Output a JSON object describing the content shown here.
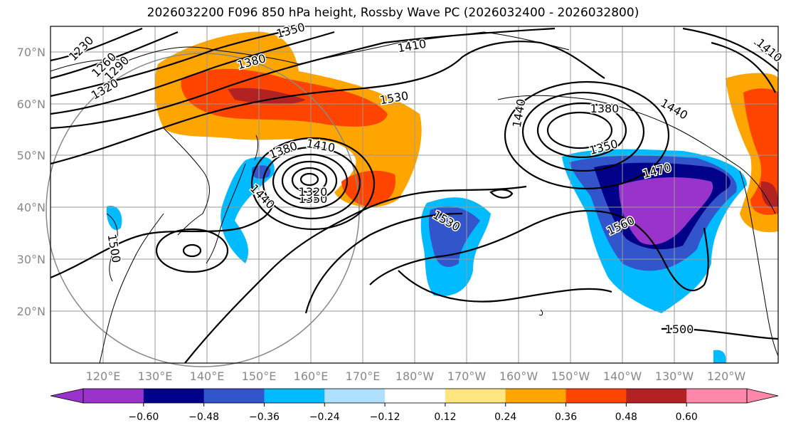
{
  "title": "2026032200 F096 850 hPa height, Rossby Wave PC (2026032400 - 2026032800)",
  "lat_labels": [
    "70°N",
    "60°N",
    "50°N",
    "40°N",
    "30°N",
    "20°N"
  ],
  "lon_labels": [
    "120°E",
    "130°E",
    "140°E",
    "150°E",
    "160°E",
    "170°E",
    "180°W",
    "170°W",
    "160°W",
    "150°W",
    "140°W",
    "130°W",
    "120°W"
  ],
  "contour_labels": [
    "1230",
    "1260",
    "1290",
    "1320",
    "1350",
    "1380",
    "1410",
    "1440",
    "1470",
    "1500",
    "1530",
    "1560"
  ],
  "colorbar": {
    "ticks": [
      "−0.60",
      "−0.48",
      "−0.36",
      "−0.24",
      "−0.12",
      "0.12",
      "0.24",
      "0.36",
      "0.48",
      "0.60"
    ],
    "colors": [
      "#9933cc",
      "#000088",
      "#3355cc",
      "#00bbff",
      "#b0e0ff",
      "#ffffff",
      "#ffe680",
      "#ffa500",
      "#ff4400",
      "#b22222",
      "#ff88aa"
    ]
  },
  "colors": {
    "orange": "#ffa500",
    "red": "#ff4400",
    "darkred": "#b22222",
    "cyan": "#00bbff",
    "blue": "#3355cc",
    "navy": "#000088",
    "purple": "#9933cc"
  }
}
